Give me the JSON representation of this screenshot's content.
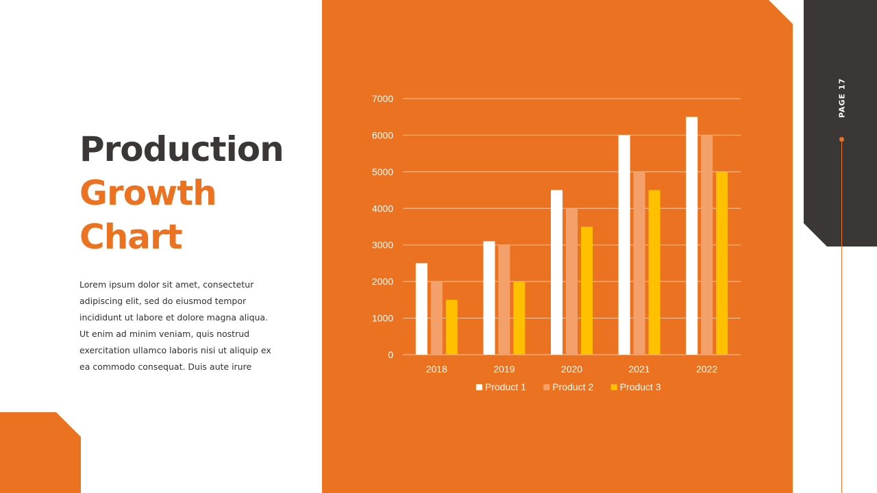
{
  "title": {
    "line1": "Production",
    "line2": "Growth",
    "line3": "Chart"
  },
  "description": "Lorem ipsum dolor sit amet, consectetur adipiscing elit, sed do eiusmod tempor incididunt ut labore et dolore magna aliqua. Ut enim ad minim veniam, quis nostrud exercitation ullamco laboris nisi ut aliquip ex ea commodo consequat. Duis aute irure",
  "page_label": "PAGE 17",
  "colors": {
    "accent": "#eb7220",
    "dark": "#3b3736",
    "white": "#ffffff"
  },
  "chart_data": {
    "type": "bar",
    "categories": [
      "2018",
      "2019",
      "2020",
      "2021",
      "2022"
    ],
    "series": [
      {
        "name": "Product 1",
        "color": "#ffffff",
        "values": [
          2500,
          3100,
          4500,
          6000,
          6500
        ]
      },
      {
        "name": "Product 2",
        "color": "#f4a06a",
        "values": [
          2000,
          3000,
          4000,
          5000,
          6000
        ]
      },
      {
        "name": "Product 3",
        "color": "#ffc000",
        "values": [
          1500,
          2000,
          3500,
          4500,
          5000
        ]
      }
    ],
    "yticks": [
      0,
      1000,
      2000,
      3000,
      4000,
      5000,
      6000,
      7000
    ],
    "ylim": [
      0,
      7000
    ],
    "grid": true,
    "legend_position": "bottom"
  }
}
